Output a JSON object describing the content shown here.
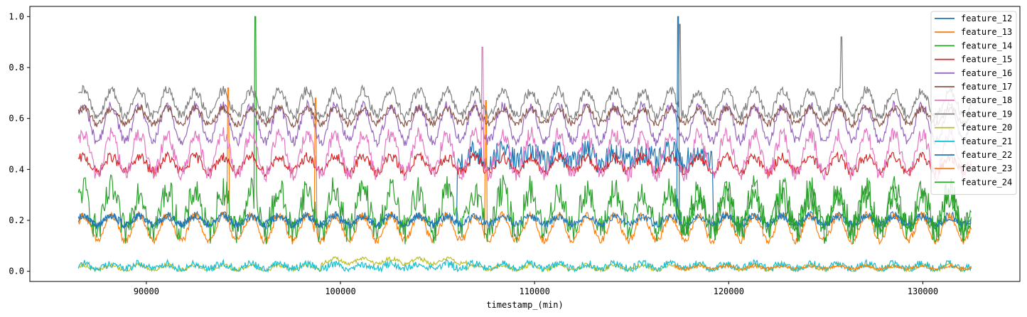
{
  "chart_data": {
    "type": "line",
    "title": "",
    "xlabel": "timestamp_(min)",
    "ylabel": "",
    "xlim": [
      84000,
      135000
    ],
    "ylim": [
      -0.04,
      1.04
    ],
    "x_ticks": [
      90000,
      100000,
      110000,
      120000,
      130000
    ],
    "x_tick_labels": [
      "90000",
      "100000",
      "110000",
      "120000",
      "130000"
    ],
    "y_ticks": [
      0.0,
      0.2,
      0.4,
      0.6,
      0.8,
      1.0
    ],
    "y_tick_labels": [
      "0.0",
      "0.2",
      "0.4",
      "0.6",
      "0.8",
      "1.0"
    ],
    "x_range": [
      86500,
      132500
    ],
    "legend_position": "top-right",
    "grid": false,
    "series": [
      {
        "name": "feature_12",
        "color": "#1f77b4",
        "base": 0.2,
        "amp": 0.02,
        "noise": 0.015,
        "segments": [
          {
            "start": 106000,
            "end": 119200,
            "base": 0.45,
            "noise": 0.05
          }
        ]
      },
      {
        "name": "feature_13",
        "color": "#ff7f0e",
        "base": 0.17,
        "amp": 0.05,
        "noise": 0.015,
        "peaks": [
          {
            "x": 94200,
            "y": 0.72
          },
          {
            "x": 98700,
            "y": 0.68
          },
          {
            "x": 107500,
            "y": 0.67
          }
        ]
      },
      {
        "name": "feature_14",
        "color": "#2ca02c",
        "base": 0.24,
        "amp": 0.08,
        "noise": 0.06,
        "peaks": [
          {
            "x": 95600,
            "y": 1.0
          }
        ]
      },
      {
        "name": "feature_15",
        "color": "#d62728",
        "base": 0.42,
        "amp": 0.03,
        "noise": 0.02
      },
      {
        "name": "feature_16",
        "color": "#9467bd",
        "base": 0.58,
        "amp": 0.07,
        "noise": 0.02
      },
      {
        "name": "feature_17",
        "color": "#8c564b",
        "base": 0.61,
        "amp": 0.03,
        "noise": 0.015
      },
      {
        "name": "feature_18",
        "color": "#e377c2",
        "base": 0.46,
        "amp": 0.08,
        "noise": 0.03,
        "peaks": [
          {
            "x": 107300,
            "y": 0.88
          }
        ]
      },
      {
        "name": "feature_19",
        "color": "#7f7f7f",
        "base": 0.66,
        "amp": 0.05,
        "noise": 0.02,
        "peaks": [
          {
            "x": 117500,
            "y": 0.97
          },
          {
            "x": 125800,
            "y": 0.92
          }
        ]
      },
      {
        "name": "feature_20",
        "color": "#bcbd22",
        "base": 0.015,
        "amp": 0.01,
        "noise": 0.008,
        "segments": [
          {
            "start": 99000,
            "end": 106500,
            "base": 0.04,
            "noise": 0.008
          }
        ]
      },
      {
        "name": "feature_21",
        "color": "#17becf",
        "base": 0.02,
        "amp": 0.01,
        "noise": 0.015
      },
      {
        "name": "feature_22",
        "color": "#1f77b4",
        "base": 0.2,
        "amp": 0.015,
        "noise": 0.015,
        "peaks": [
          {
            "x": 117400,
            "y": 1.0
          }
        ]
      },
      {
        "name": "feature_23",
        "color": "#ff7f0e",
        "base": 0.015,
        "amp": 0.005,
        "noise": 0.006,
        "start": 117200
      },
      {
        "name": "feature_24",
        "color": "#2ca02c",
        "base": 0.23,
        "amp": 0.06,
        "noise": 0.05,
        "start": 117000
      }
    ]
  }
}
